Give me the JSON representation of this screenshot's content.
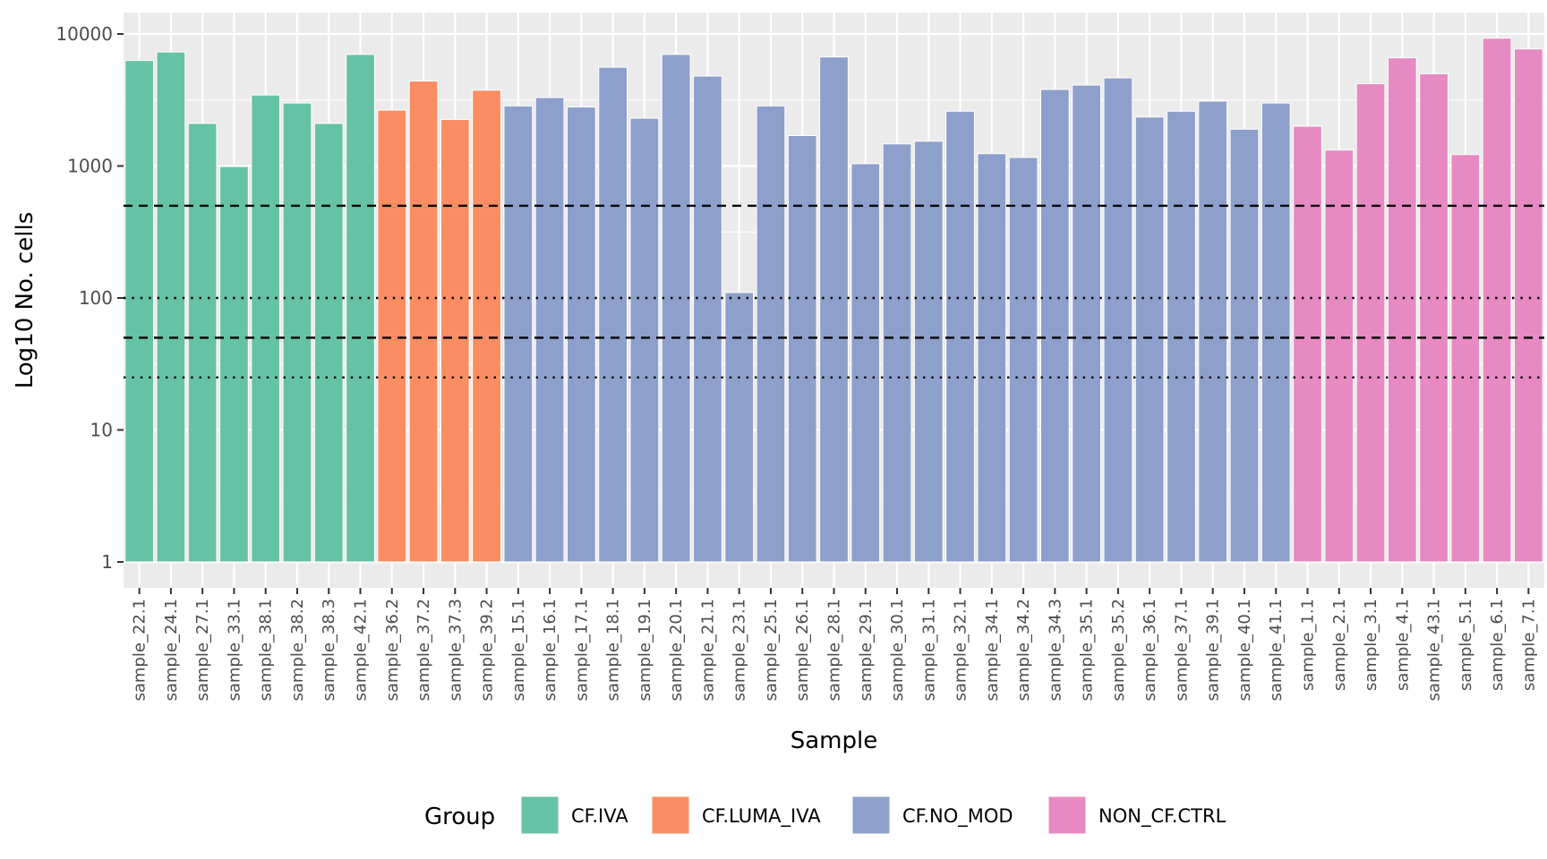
{
  "chart_data": {
    "type": "bar",
    "title": "",
    "xlabel": "Sample",
    "ylabel": "Log10 No. cells",
    "yscale": "log10",
    "ylim": [
      1,
      10000
    ],
    "yticks": [
      1,
      10,
      100,
      1000,
      10000
    ],
    "ytick_labels": [
      "1",
      "10",
      "100",
      "1000",
      "10000"
    ],
    "grid": true,
    "legend": {
      "title": "Group",
      "position": "bottom",
      "entries": [
        {
          "name": "CF.IVA",
          "color": "#66c2a5"
        },
        {
          "name": "CF.LUMA_IVA",
          "color": "#fc8d62"
        },
        {
          "name": "CF.NO_MOD",
          "color": "#8da0cb"
        },
        {
          "name": "NON_CF.CTRL",
          "color": "#e78ac3"
        }
      ]
    },
    "reference_lines": [
      {
        "value": 500,
        "style": "dashed"
      },
      {
        "value": 100,
        "style": "dotted"
      },
      {
        "value": 50,
        "style": "dashed"
      },
      {
        "value": 25,
        "style": "dotted"
      }
    ],
    "categories": [
      "sample_22.1",
      "sample_24.1",
      "sample_27.1",
      "sample_33.1",
      "sample_38.1",
      "sample_38.2",
      "sample_38.3",
      "sample_42.1",
      "sample_36.2",
      "sample_37.2",
      "sample_37.3",
      "sample_39.2",
      "sample_15.1",
      "sample_16.1",
      "sample_17.1",
      "sample_18.1",
      "sample_19.1",
      "sample_20.1",
      "sample_21.1",
      "sample_23.1",
      "sample_25.1",
      "sample_26.1",
      "sample_28.1",
      "sample_29.1",
      "sample_30.1",
      "sample_31.1",
      "sample_32.1",
      "sample_34.1",
      "sample_34.2",
      "sample_34.3",
      "sample_35.1",
      "sample_35.2",
      "sample_36.1",
      "sample_37.1",
      "sample_39.1",
      "sample_40.1",
      "sample_41.1",
      "sample_1.1",
      "sample_2.1",
      "sample_3.1",
      "sample_4.1",
      "sample_43.1",
      "sample_5.1",
      "sample_6.1",
      "sample_7.1"
    ],
    "groups": [
      "CF.IVA",
      "CF.IVA",
      "CF.IVA",
      "CF.IVA",
      "CF.IVA",
      "CF.IVA",
      "CF.IVA",
      "CF.IVA",
      "CF.LUMA_IVA",
      "CF.LUMA_IVA",
      "CF.LUMA_IVA",
      "CF.LUMA_IVA",
      "CF.NO_MOD",
      "CF.NO_MOD",
      "CF.NO_MOD",
      "CF.NO_MOD",
      "CF.NO_MOD",
      "CF.NO_MOD",
      "CF.NO_MOD",
      "CF.NO_MOD",
      "CF.NO_MOD",
      "CF.NO_MOD",
      "CF.NO_MOD",
      "CF.NO_MOD",
      "CF.NO_MOD",
      "CF.NO_MOD",
      "CF.NO_MOD",
      "CF.NO_MOD",
      "CF.NO_MOD",
      "CF.NO_MOD",
      "CF.NO_MOD",
      "CF.NO_MOD",
      "CF.NO_MOD",
      "CF.NO_MOD",
      "CF.NO_MOD",
      "CF.NO_MOD",
      "CF.NO_MOD",
      "NON_CF.CTRL",
      "NON_CF.CTRL",
      "NON_CF.CTRL",
      "NON_CF.CTRL",
      "NON_CF.CTRL",
      "NON_CF.CTRL",
      "NON_CF.CTRL",
      "NON_CF.CTRL"
    ],
    "values": [
      6300,
      7300,
      2100,
      990,
      3450,
      3000,
      2100,
      7000,
      2650,
      4400,
      2250,
      3750,
      2850,
      3300,
      2800,
      5600,
      2300,
      7000,
      4800,
      110,
      2850,
      1700,
      6700,
      1040,
      1470,
      1540,
      2600,
      1240,
      1160,
      3800,
      4100,
      4650,
      2350,
      2600,
      3100,
      1900,
      3000,
      2000,
      1320,
      4200,
      6600,
      5000,
      1220,
      9300,
      7700
    ]
  }
}
